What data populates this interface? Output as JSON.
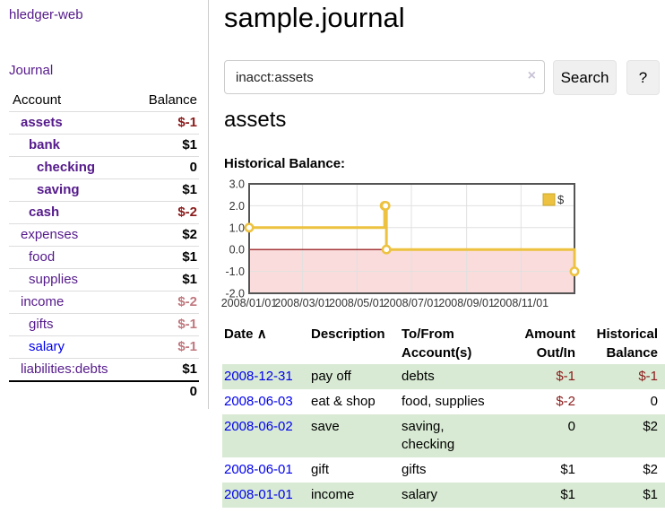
{
  "app": {
    "brand": "hledger-web",
    "nav": {
      "journal": "Journal"
    }
  },
  "sidebar": {
    "header": {
      "account": "Account",
      "balance": "Balance"
    },
    "accounts": [
      {
        "name": "assets",
        "indent": 1,
        "bold": true,
        "link_color": "purple",
        "balance": "$-1",
        "balance_style": "neg-strong"
      },
      {
        "name": "bank",
        "indent": 2,
        "bold": true,
        "link_color": "purple",
        "balance": "$1",
        "balance_style": "pos"
      },
      {
        "name": "checking",
        "indent": 3,
        "bold": true,
        "link_color": "purple",
        "balance": "0",
        "balance_style": "pos"
      },
      {
        "name": "saving",
        "indent": 3,
        "bold": true,
        "link_color": "purple",
        "balance": "$1",
        "balance_style": "pos"
      },
      {
        "name": "cash",
        "indent": 2,
        "bold": true,
        "link_color": "purple",
        "balance": "$-2",
        "balance_style": "neg-strong"
      },
      {
        "name": "expenses",
        "indent": 1,
        "bold": false,
        "link_color": "purple",
        "balance": "$2",
        "balance_style": "pos"
      },
      {
        "name": "food",
        "indent": 2,
        "bold": false,
        "link_color": "purple",
        "balance": "$1",
        "balance_style": "pos"
      },
      {
        "name": "supplies",
        "indent": 2,
        "bold": false,
        "link_color": "purple",
        "balance": "$1",
        "balance_style": "pos"
      },
      {
        "name": "income",
        "indent": 1,
        "bold": false,
        "link_color": "purple",
        "balance": "$-2",
        "balance_style": "neg-soft"
      },
      {
        "name": "gifts",
        "indent": 2,
        "bold": false,
        "link_color": "purple",
        "balance": "$-1",
        "balance_style": "neg-soft"
      },
      {
        "name": "salary",
        "indent": 2,
        "bold": false,
        "link_color": "blue",
        "balance": "$-1",
        "balance_style": "neg-soft"
      },
      {
        "name": "liabilities:debts",
        "indent": 1,
        "bold": false,
        "link_color": "purple",
        "balance": "$1",
        "balance_style": "pos"
      }
    ],
    "total": "0"
  },
  "header": {
    "title": "sample.journal"
  },
  "search": {
    "value": "inacct:assets",
    "clear_icon": "×",
    "button_label": "Search",
    "help_label": "?"
  },
  "account_page": {
    "title": "assets",
    "section_label": "Historical Balance:"
  },
  "chart_data": {
    "type": "line",
    "step": true,
    "title": "Historical Balance",
    "series": [
      {
        "name": "$",
        "color": "#EDC240",
        "x": [
          "2008-01-01",
          "2008-06-01",
          "2008-06-02",
          "2008-06-03",
          "2008-12-31"
        ],
        "values": [
          1,
          2,
          2,
          0,
          -1
        ]
      }
    ],
    "x_ticks": [
      "2008/01/01",
      "2008/03/01",
      "2008/05/01",
      "2008/07/01",
      "2008/09/01",
      "2008/11/01"
    ],
    "y_ticks": [
      "3.0",
      "2.0",
      "1.0",
      "0.0",
      "-1.0",
      "-2.0"
    ],
    "ylim": [
      -2,
      3
    ],
    "xlim": [
      "2008-01-01",
      "2008-12-31"
    ],
    "legend": {
      "label": "$",
      "position": "top-right"
    },
    "grid": true,
    "negative_region": {
      "fill": "#fbdcdc",
      "zero_line_color": "#8b0000"
    }
  },
  "register": {
    "sort_icon": "∧",
    "headers": {
      "date": "Date",
      "description": "Description",
      "accounts_line1": "To/From",
      "accounts_line2": "Account(s)",
      "amount_line1": "Amount",
      "amount_line2": "Out/In",
      "balance_line1": "Historical",
      "balance_line2": "Balance"
    },
    "rows": [
      {
        "date": "2008-12-31",
        "description": "pay off",
        "accounts": "debts",
        "amount": "$-1",
        "amount_neg": true,
        "balance": "$-1",
        "balance_neg": true
      },
      {
        "date": "2008-06-03",
        "description": "eat & shop",
        "accounts": "food, supplies",
        "amount": "$-2",
        "amount_neg": true,
        "balance": "0",
        "balance_neg": false
      },
      {
        "date": "2008-06-02",
        "description": "save",
        "accounts": "saving, checking",
        "amount": "0",
        "amount_neg": false,
        "balance": "$2",
        "balance_neg": false
      },
      {
        "date": "2008-06-01",
        "description": "gift",
        "accounts": "gifts",
        "amount": "$1",
        "amount_neg": false,
        "balance": "$2",
        "balance_neg": false
      },
      {
        "date": "2008-01-01",
        "description": "income",
        "accounts": "salary",
        "amount": "$1",
        "amount_neg": false,
        "balance": "$1",
        "balance_neg": false
      }
    ]
  },
  "colors": {
    "accent_purple": "#551A8B",
    "link_blue": "#0000EE",
    "neg_strong": "#8B1A1A",
    "neg_soft": "#C0787E",
    "row_green": "#d8ead3",
    "chart_line": "#EDC240",
    "chart_border": "#545454",
    "grid_line": "#e0e0e0"
  }
}
